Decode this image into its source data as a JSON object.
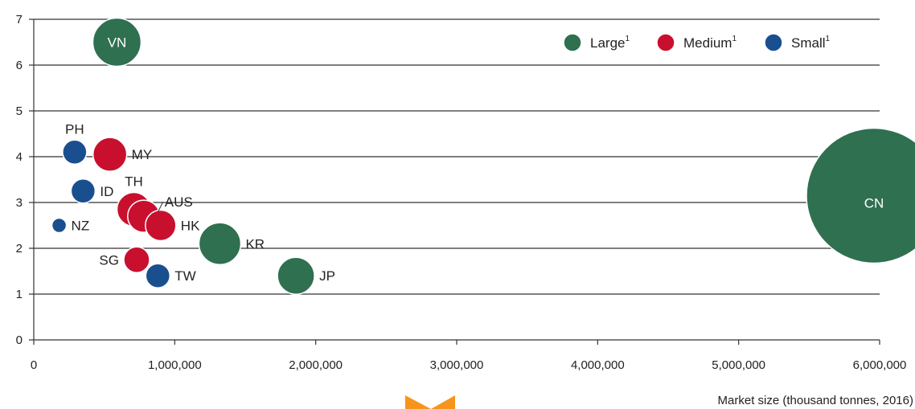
{
  "chart_data": {
    "type": "scatter",
    "xlabel": "Market size (thousand tonnes, 2016)",
    "ylabel": "",
    "xlim": [
      0,
      6000000
    ],
    "ylim": [
      0,
      7
    ],
    "x_ticks": [
      "0",
      "1,000,000",
      "2,000,000",
      "3,000,000",
      "4,000,000",
      "5,000,000",
      "6,000,000"
    ],
    "x_tick_values": [
      0,
      1000000,
      2000000,
      3000000,
      4000000,
      5000000,
      6000000
    ],
    "y_ticks": [
      "0",
      "1",
      "2",
      "3",
      "4",
      "5",
      "6",
      "7"
    ],
    "y_tick_values": [
      0,
      1,
      2,
      3,
      4,
      5,
      6,
      7
    ],
    "grid": "horizontal",
    "legend_position": "top-right",
    "legend": [
      {
        "key": "large",
        "label": "Large",
        "sup": "1",
        "color": "#2e7050"
      },
      {
        "key": "medium",
        "label": "Medium",
        "sup": "1",
        "color": "#c8102e"
      },
      {
        "key": "small",
        "label": "Small",
        "sup": "1",
        "color": "#1a4f8f"
      }
    ],
    "points": [
      {
        "label": "VN",
        "x": 590000,
        "y": 6.5,
        "group": "large",
        "label_pos": "inside"
      },
      {
        "label": "CN",
        "x": 5960000,
        "y": 3.15,
        "group": "large",
        "label_pos": "inside"
      },
      {
        "label": "KR",
        "x": 1320000,
        "y": 2.1,
        "group": "large",
        "label_pos": "right"
      },
      {
        "label": "JP",
        "x": 1860000,
        "y": 1.4,
        "group": "large",
        "label_pos": "right"
      },
      {
        "label": "MY",
        "x": 540000,
        "y": 4.05,
        "group": "medium",
        "label_pos": "right"
      },
      {
        "label": "TH",
        "x": 710000,
        "y": 2.85,
        "group": "medium",
        "label_pos": "above"
      },
      {
        "label": "AUS",
        "x": 780000,
        "y": 2.7,
        "group": "medium",
        "label_pos": "upper-right"
      },
      {
        "label": "HK",
        "x": 900000,
        "y": 2.5,
        "group": "medium",
        "label_pos": "right"
      },
      {
        "label": "SG",
        "x": 730000,
        "y": 1.75,
        "group": "medium",
        "label_pos": "left"
      },
      {
        "label": "PH",
        "x": 290000,
        "y": 4.1,
        "group": "small",
        "label_pos": "above"
      },
      {
        "label": "ID",
        "x": 350000,
        "y": 3.25,
        "group": "small",
        "label_pos": "right"
      },
      {
        "label": "NZ",
        "x": 180000,
        "y": 2.5,
        "group": "small",
        "label_pos": "right"
      },
      {
        "label": "TW",
        "x": 880000,
        "y": 1.4,
        "group": "small",
        "label_pos": "right"
      }
    ],
    "bubble_size": {
      "VN": 1.5,
      "CN": 4.2,
      "KR": 1.3,
      "JP": 1.15,
      "MY": 1.05,
      "TH": 1.05,
      "AUS": 1.0,
      "HK": 0.95,
      "SG": 0.8,
      "PH": 0.75,
      "ID": 0.75,
      "NZ": 0.45,
      "TW": 0.75
    }
  },
  "decoration": {
    "marker_color": "#f7941d"
  }
}
